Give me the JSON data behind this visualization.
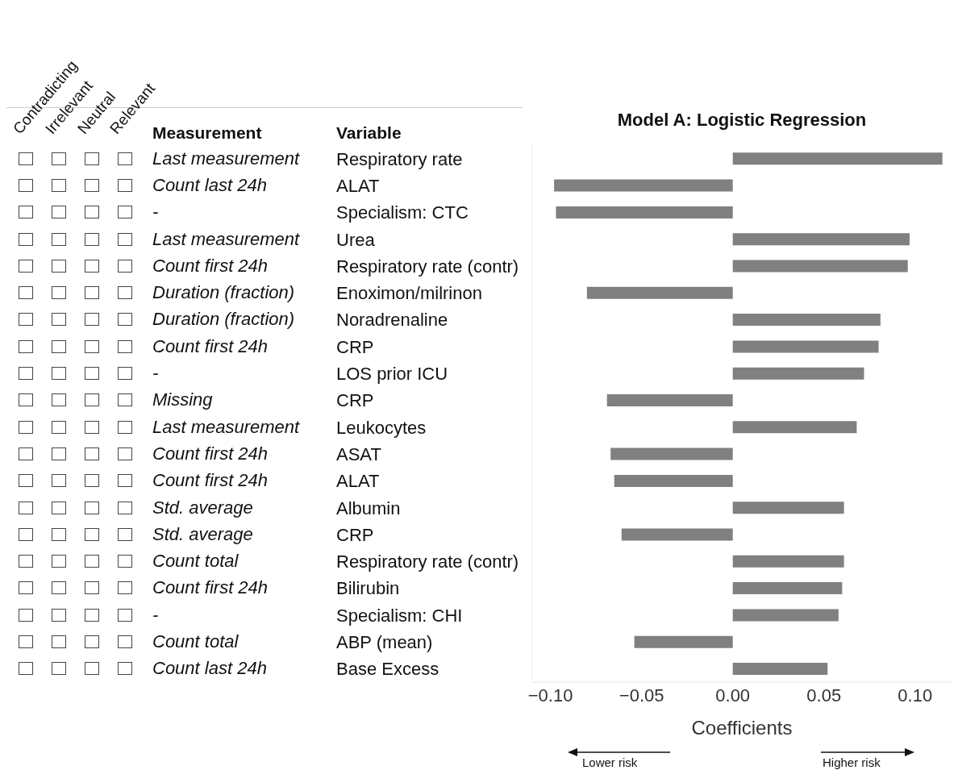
{
  "chart_data": {
    "type": "bar",
    "orientation": "horizontal",
    "title": "Model A: Logistic Regression",
    "xlabel": "Coefficients",
    "ylabel": "Variable",
    "categories": [
      "Respiratory rate",
      "ALAT",
      "Specialism: CTC",
      "Urea",
      "Respiratory rate (contr)",
      "Enoximon/milrinon",
      "Noradrenaline",
      "CRP",
      "LOS prior ICU",
      "CRP",
      "Leukocytes",
      "ASAT",
      "ALAT",
      "Albumin",
      "CRP",
      "Respiratory rate (contr)",
      "Bilirubin",
      "Specialism: CHI",
      "ABP (mean)",
      "Base Excess"
    ],
    "values": [
      0.115,
      -0.098,
      -0.097,
      0.097,
      0.096,
      -0.08,
      0.081,
      0.08,
      0.072,
      -0.069,
      0.068,
      -0.067,
      -0.065,
      0.061,
      -0.061,
      0.061,
      0.06,
      0.058,
      -0.054,
      0.052
    ],
    "color": "#808080",
    "xlim": [
      -0.11,
      0.12
    ],
    "xticks": [
      {
        "value": -0.1,
        "label": "−0.10"
      },
      {
        "value": -0.05,
        "label": "−0.05"
      },
      {
        "value": 0,
        "label": "0.00"
      },
      {
        "value": 0.05,
        "label": "0.05"
      },
      {
        "value": 0.1,
        "label": "0.10"
      }
    ],
    "annotations": [
      "Measurement",
      "Contradicting",
      "Irrelevant",
      "Neutral",
      "Relevant",
      "Lower risk",
      "Higher risk",
      "Last measurement",
      "Count last 24h",
      "-",
      "Last measurement",
      "Count first 24h",
      "Duration (fraction)",
      "Duration (fraction)",
      "Count first 24h",
      "-",
      "Missing",
      "Last measurement",
      "Count first 24h",
      "Count first 24h",
      "Std. average",
      "Std. average",
      "Count total",
      "Count first 24h",
      "-",
      "Count total",
      "Count last 24h"
    ]
  }
}
